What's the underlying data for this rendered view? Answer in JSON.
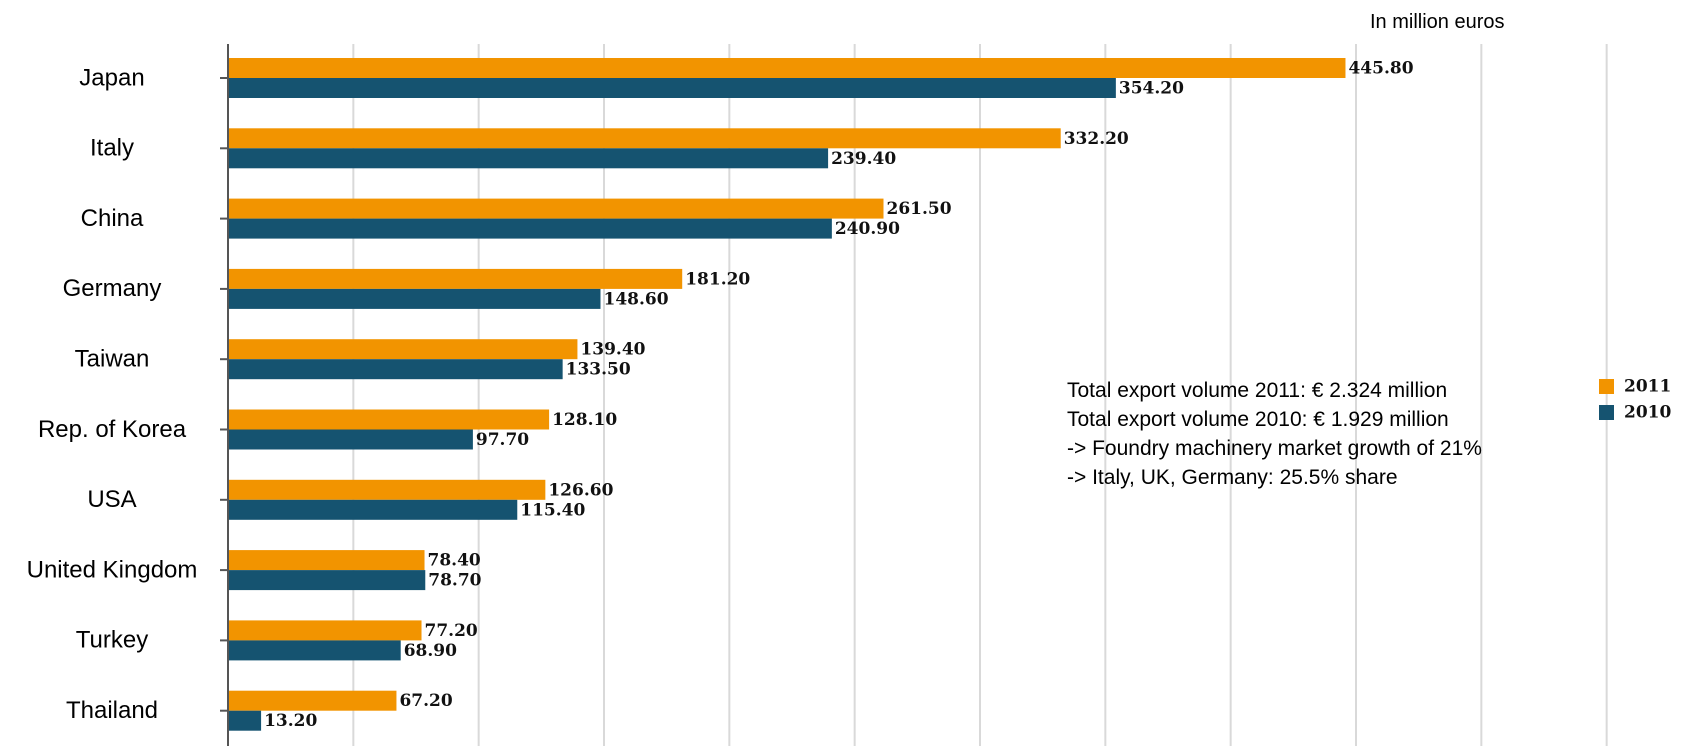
{
  "unit_label": "In million euros",
  "notes": [
    "Total export volume 2011: € 2.324 million",
    "Total export volume 2010: € 1.929 million",
    "-> Foundry machinery market growth of 21%",
    "-> Italy, UK, Germany: 25.5% share"
  ],
  "colors": {
    "2011": "#f29400",
    "2010": "#155370",
    "grid": "#d9d9d9",
    "axis": "#000000"
  },
  "chart_data": {
    "type": "bar",
    "orientation": "horizontal",
    "categories": [
      "Japan",
      "Italy",
      "China",
      "Germany",
      "Taiwan",
      "Rep. of Korea",
      "USA",
      "United Kingdom",
      "Turkey",
      "Thailand"
    ],
    "series": [
      {
        "name": "2011",
        "values": [
          445.8,
          332.2,
          261.5,
          181.2,
          139.4,
          128.1,
          126.6,
          78.4,
          77.2,
          67.2
        ],
        "labels": [
          "445.80",
          "332.20",
          "261.50",
          "181.20",
          "139.40",
          "128.10",
          "126.60",
          "78.40",
          "77.20",
          "67.20"
        ]
      },
      {
        "name": "2010",
        "values": [
          354.2,
          239.4,
          240.9,
          148.6,
          133.5,
          97.7,
          115.4,
          78.7,
          68.9,
          13.2
        ],
        "labels": [
          "354.20",
          "239.40",
          "240.90",
          "148.60",
          "133.50",
          "97.70",
          "115.40",
          "78.70",
          "68.90",
          "13.20"
        ]
      }
    ],
    "xlim": [
      0,
      575
    ],
    "x_gridline_step": 50,
    "grid": true,
    "legend_position": "right"
  }
}
